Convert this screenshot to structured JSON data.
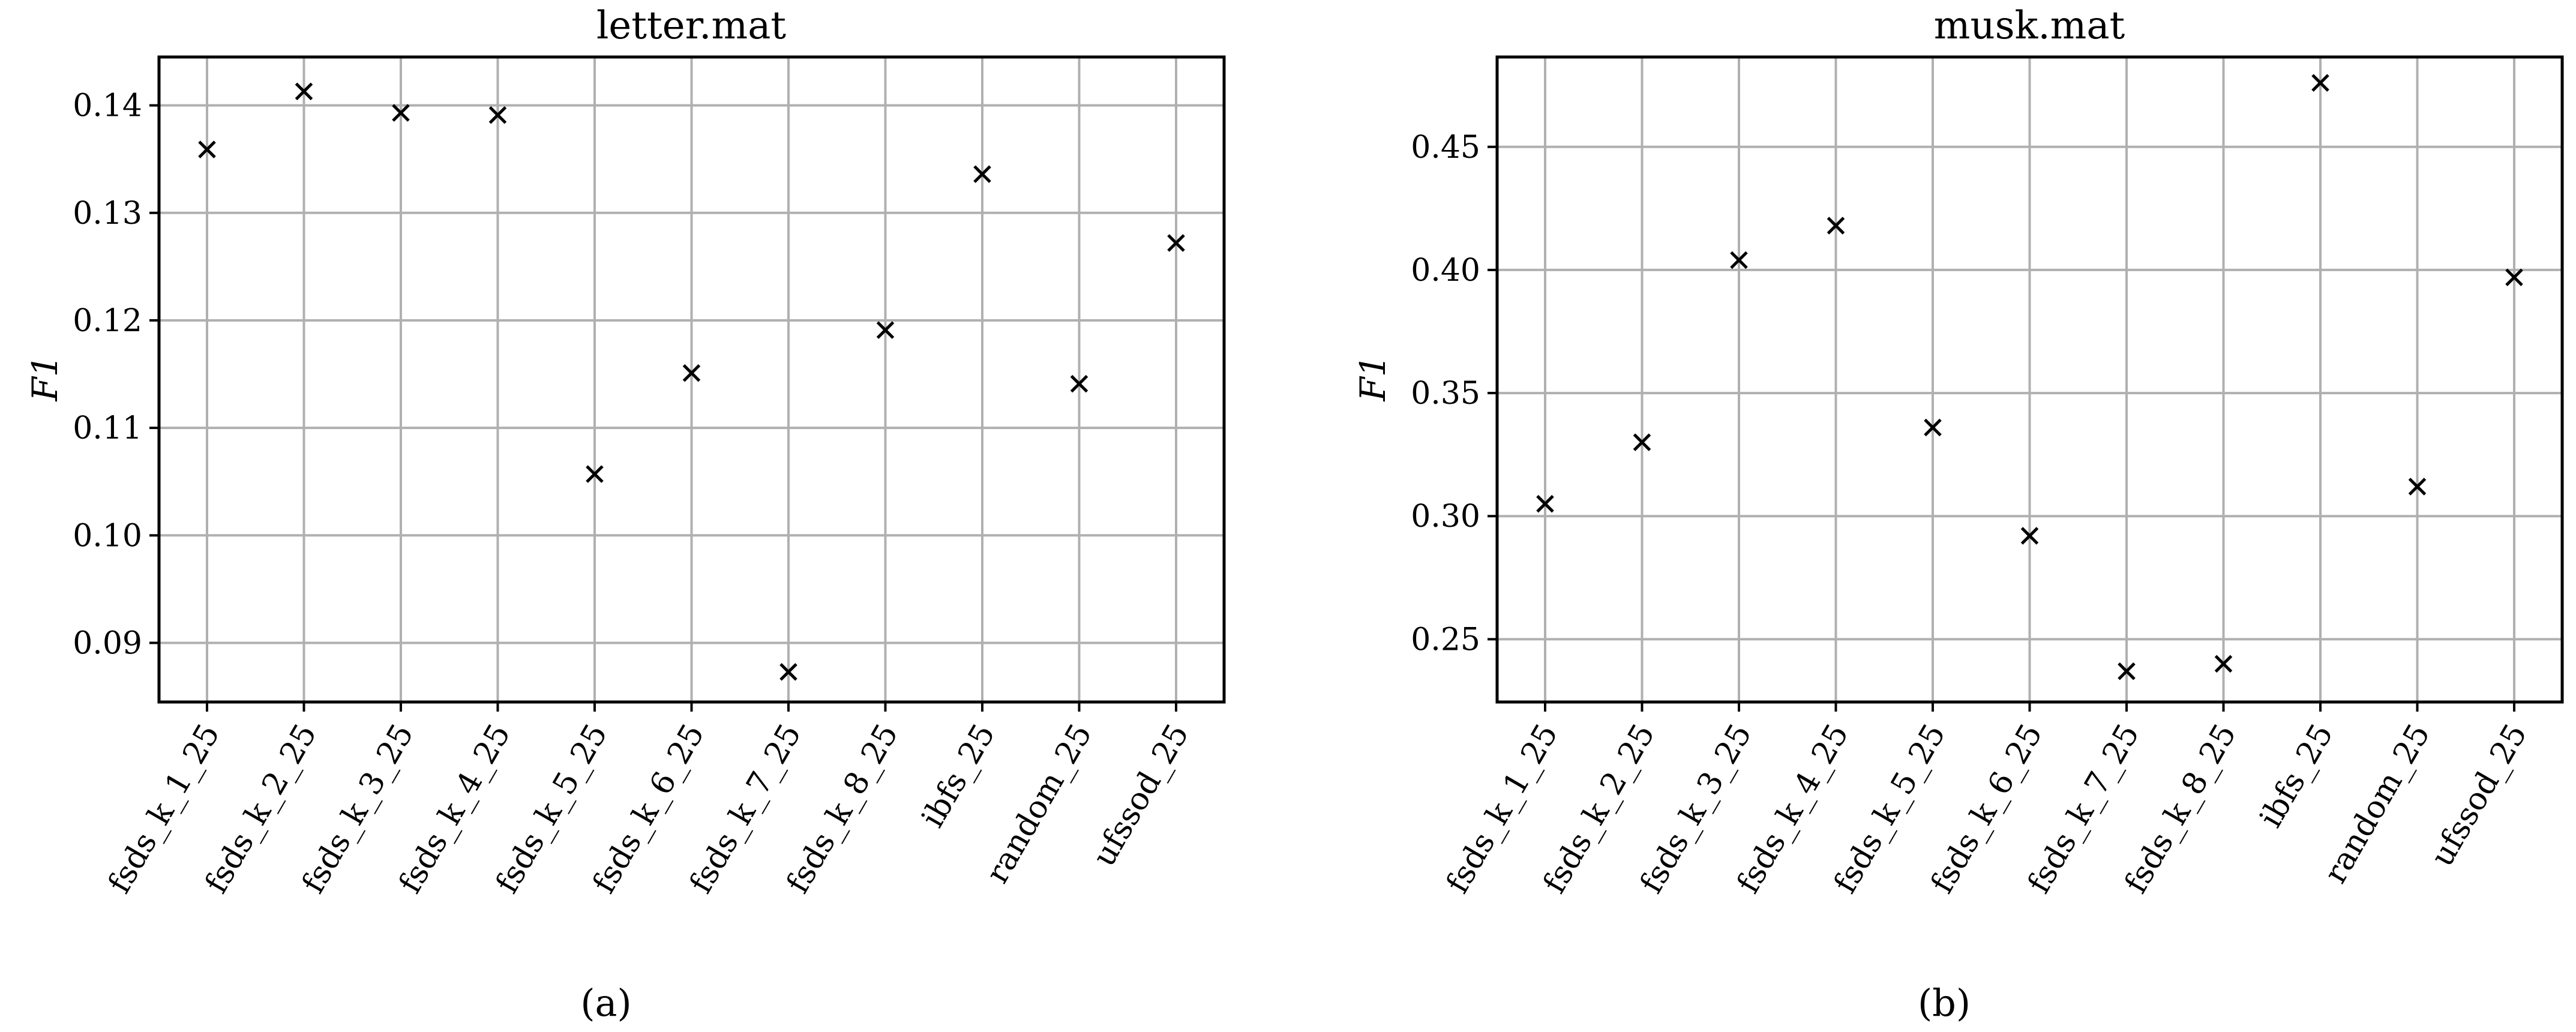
{
  "chart_data": [
    {
      "type": "scatter",
      "title": "letter.mat",
      "ylabel": "F1",
      "xlabel": "",
      "panel_label": "(a)",
      "categories": [
        "fsds_k_1_25",
        "fsds_k_2_25",
        "fsds_k_3_25",
        "fsds_k_4_25",
        "fsds_k_5_25",
        "fsds_k_6_25",
        "fsds_k_7_25",
        "fsds_k_8_25",
        "ibfs_25",
        "random_25",
        "ufssod_25"
      ],
      "values": [
        0.1359,
        0.1413,
        0.1393,
        0.1391,
        0.1057,
        0.1151,
        0.0873,
        0.1191,
        0.1336,
        0.1141,
        0.1272
      ],
      "yticks": [
        "0.09",
        "0.10",
        "0.11",
        "0.12",
        "0.13",
        "0.14"
      ],
      "ylim": [
        0.0845,
        0.1445
      ],
      "grid": true,
      "marker": "x",
      "color": "#000000"
    },
    {
      "type": "scatter",
      "title": "musk.mat",
      "ylabel": "F1",
      "xlabel": "",
      "panel_label": "(b)",
      "categories": [
        "fsds_k_1_25",
        "fsds_k_2_25",
        "fsds_k_3_25",
        "fsds_k_4_25",
        "fsds_k_5_25",
        "fsds_k_6_25",
        "fsds_k_7_25",
        "fsds_k_8_25",
        "ibfs_25",
        "random_25",
        "ufssod_25"
      ],
      "values": [
        0.305,
        0.33,
        0.404,
        0.418,
        0.336,
        0.292,
        0.237,
        0.24,
        0.476,
        0.312,
        0.397
      ],
      "yticks": [
        "0.25",
        "0.30",
        "0.35",
        "0.40",
        "0.45"
      ],
      "ylim": [
        0.2245,
        0.4865
      ],
      "grid": true,
      "marker": "x",
      "color": "#000000"
    }
  ]
}
